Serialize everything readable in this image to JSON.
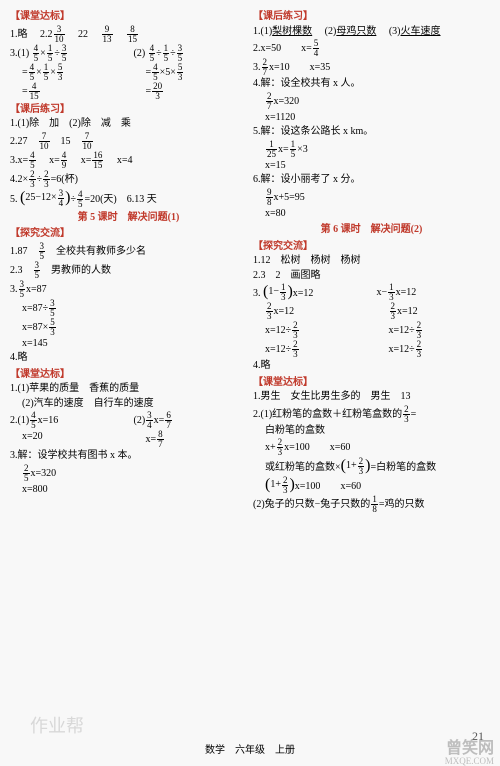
{
  "left": {
    "s1_title": "【课堂达标】",
    "s1_l1a": "1.略",
    "s1_l1b": "2.",
    "s1_l1c": "22",
    "s1_q3_label": "3.(1)",
    "s1_q3b_label": "(2)",
    "s1_q3_eq": "=",
    "s1_q3_final_lbl": "=",
    "s2_title": "【课后练习】",
    "s2_l1": "1.(1)除　加　(2)除　减　乘",
    "s2_l2a": "2.27",
    "s2_l2b": "15",
    "s2_l3": "3.x=",
    "s2_l3b": "x=",
    "s2_l3c": "x=",
    "s2_l3d": "x=4",
    "s2_l4a": "4.2×",
    "s2_l4b": "÷",
    "s2_l4c": "=6(杯)",
    "s2_l5a": "5.",
    "s2_l5b": "25−12×",
    "s2_l5c": "÷",
    "s2_l5d": "=20(天)",
    "s2_l5e": "6.13 天",
    "sub1": "第 5 课时　解决问题(1)",
    "s3_title": "【探究交流】",
    "s3_l1a": "1.87",
    "s3_l1b": "全校共有教师多少名",
    "s3_l2a": "2.3",
    "s3_l2b": "男教师的人数",
    "s3_l3a": "3.",
    "s3_l3b": "x=87",
    "s3_r1": "x=87÷",
    "s3_r2": "x=87×",
    "s3_r3": "x=145",
    "s3_l4": "4.略",
    "s4_title": "【课堂达标】",
    "s4_l1": "1.(1)苹果的质量　香蕉的质量",
    "s4_l1b": "(2)汽车的速度　自行车的速度",
    "s4_l2a": "2.(1)",
    "s4_l2a2": "x=16",
    "s4_l2b": "(2)",
    "s4_l2b2": "x=",
    "s4_r1": "x=20",
    "s4_r2": "x=",
    "s4_l3": "3.解：设学校共有图书 x 本。",
    "s4_r3a": "x=320",
    "s4_r3b": "x=800"
  },
  "right": {
    "s1_title": "【课后练习】",
    "s1_l1a": "1.(1)",
    "s1_l1b": "梨树棵数",
    "s1_l1c": "(2)",
    "s1_l1d": "母鸡只数",
    "s1_l1e": "(3)",
    "s1_l1f": "火车速度",
    "s1_l2a": "2.x=50",
    "s1_l2b": "x=",
    "s1_l3a": "3.",
    "s1_l3b": "x=10",
    "s1_l3c": "x=35",
    "s1_l4": "4.解：设全校共有 x 人。",
    "s1_r4a": "x=320",
    "s1_r4b": "x=1120",
    "s1_l5": "5.解：设这条公路长 x km。",
    "s1_r5a": "x=",
    "s1_r5b": "×3",
    "s1_r5c": "x=15",
    "s1_l6": "6.解：设小丽考了 x 分。",
    "s1_r6a": "x+5=95",
    "s1_r6b": "x=80",
    "sub2": "第 6 课时　解决问题(2)",
    "s2_title": "【探究交流】",
    "s2_l1": "1.12　松树　杨树　杨树",
    "s2_l2": "2.3　2　画图略",
    "s2_l3": "3.",
    "s2_l3b": "x=12",
    "s2_l3c": "x−",
    "s2_l3d": "x=12",
    "s2_r3a": "x=12",
    "s2_r3b": "x=12",
    "s2_r3c": "x=12÷",
    "s2_r3d": "x=12÷",
    "s2_r3e": "x=12÷",
    "s2_r3f": "x=12÷",
    "s2_l4": "4.略",
    "s3_title": "【课堂达标】",
    "s3_l1": "1.男生　女生比男生多的　男生　13",
    "s3_l2a": "2.(1)红粉笔的盒数＋红粉笔盒数的",
    "s3_l2b": "=",
    "s3_l2c": "白粉笔的盒数",
    "s3_r2a": "x+",
    "s3_r2b": "x=100",
    "s3_r2c": "x=60",
    "s3_l2d": "或红粉笔的盒数×",
    "s3_l2e": "=白粉笔的盒数",
    "s3_r2d": "x=100",
    "s3_r2e": "x=60",
    "s3_l3": "(2)兔子的只数−兔子只数的",
    "s3_l3b": "=鸡的只数"
  },
  "footer": "数学　六年级　上册",
  "pagenum": "21",
  "wm1": "作业帮",
  "wm2": "曾笑网",
  "wm3": "MXQE.COM",
  "frac": {
    "f3_10": {
      "n": "3",
      "d": "10"
    },
    "f9_13": {
      "n": "9",
      "d": "13"
    },
    "f8_15": {
      "n": "8",
      "d": "15"
    },
    "f4_5": {
      "n": "4",
      "d": "5"
    },
    "f1_5": {
      "n": "1",
      "d": "5"
    },
    "f3_5": {
      "n": "3",
      "d": "5"
    },
    "f5_3": {
      "n": "5",
      "d": "3"
    },
    "f4_15": {
      "n": "4",
      "d": "15"
    },
    "f20_3": {
      "n": "20",
      "d": "3"
    },
    "f7_10": {
      "n": "7",
      "d": "10"
    },
    "f4_9": {
      "n": "4",
      "d": "9"
    },
    "f16_15": {
      "n": "16",
      "d": "15"
    },
    "f2_3": {
      "n": "2",
      "d": "3"
    },
    "f1_3": {
      "n": "1",
      "d": "3"
    },
    "f3_4": {
      "n": "3",
      "d": "4"
    },
    "f6_7": {
      "n": "6",
      "d": "7"
    },
    "f8_7": {
      "n": "8",
      "d": "7"
    },
    "f2_5": {
      "n": "2",
      "d": "5"
    },
    "f5_4": {
      "n": "5",
      "d": "4"
    },
    "f2_7": {
      "n": "2",
      "d": "7"
    },
    "f1_25": {
      "n": "1",
      "d": "25"
    },
    "f9_8": {
      "n": "9",
      "d": "8"
    },
    "f1_8": {
      "n": "1",
      "d": "8"
    }
  }
}
